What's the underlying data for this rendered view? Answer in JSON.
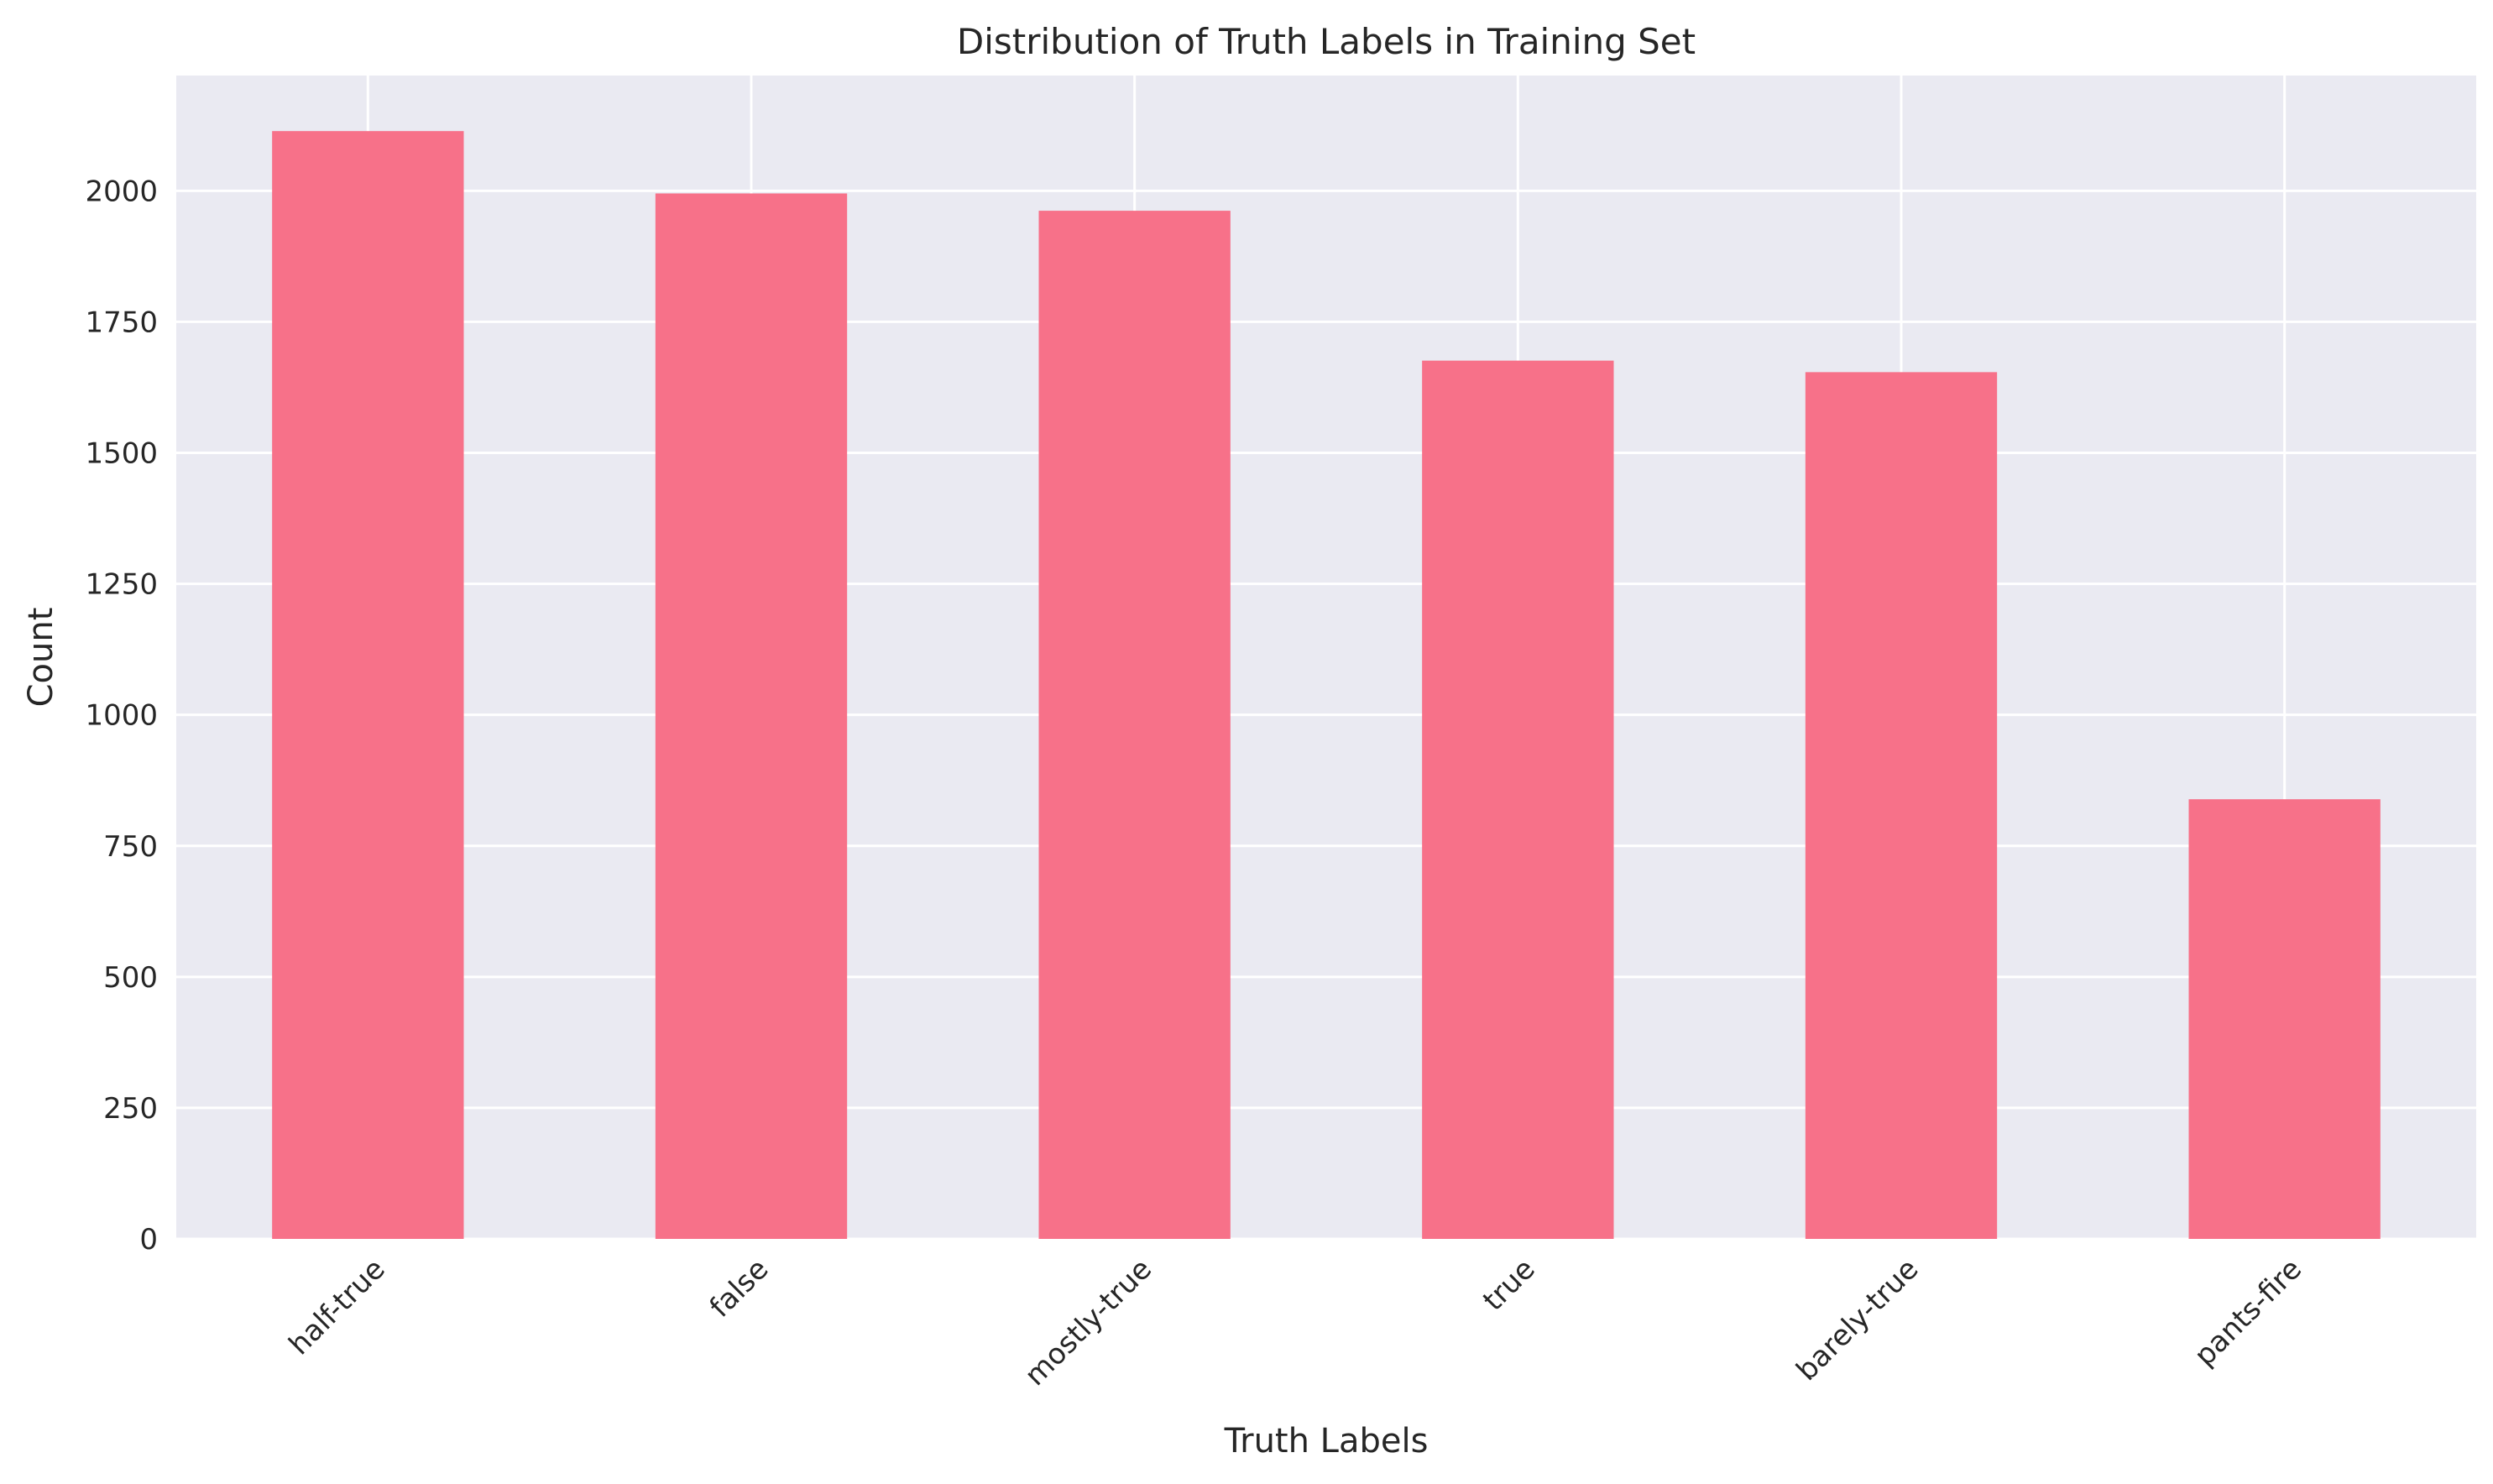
{
  "chart_data": {
    "type": "bar",
    "title": "Distribution of Truth Labels in Training Set",
    "xlabel": "Truth Labels",
    "ylabel": "Count",
    "categories": [
      "half-true",
      "false",
      "mostly-true",
      "true",
      "barely-true",
      "pants-fire"
    ],
    "values": [
      2114,
      1995,
      1962,
      1676,
      1654,
      839
    ],
    "ylim": [
      0,
      2220
    ],
    "yticks": [
      0,
      250,
      500,
      750,
      1000,
      1250,
      1500,
      1750,
      2000
    ],
    "grid": true,
    "legend": "none",
    "colors": {
      "bar": "#f77189",
      "plot_background": "#eaeaf2",
      "grid": "#ffffff",
      "text": "#262626"
    }
  }
}
